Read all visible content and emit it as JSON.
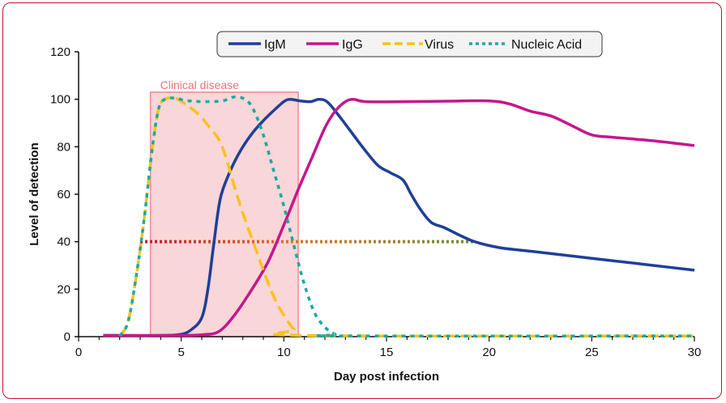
{
  "chart_data": {
    "type": "line",
    "xlabel": "Day post infection",
    "ylabel": "Level of detection",
    "xlim": [
      0,
      30
    ],
    "ylim": [
      0,
      120
    ],
    "xticks": [
      0,
      5,
      10,
      15,
      20,
      25,
      30
    ],
    "yticks": [
      0,
      20,
      40,
      60,
      80,
      100,
      120
    ],
    "grid": false,
    "legend_position": "top-center",
    "annotation": {
      "label": "Clinical disease",
      "x_start": 3.5,
      "x_end": 10.7,
      "y_top": 103,
      "color": "#f0707a"
    },
    "threshold": {
      "y": 40,
      "x_start": 3.0,
      "x_end": 19.3
    },
    "series": [
      {
        "name": "IgM",
        "color": "#1f3f99",
        "dash": "solid",
        "points": [
          [
            1.2,
            0.5
          ],
          [
            4,
            0.5
          ],
          [
            5,
            1
          ],
          [
            5.5,
            3
          ],
          [
            6,
            8
          ],
          [
            6.3,
            20
          ],
          [
            6.6,
            40
          ],
          [
            6.9,
            58
          ],
          [
            7.3,
            68
          ],
          [
            7.8,
            77
          ],
          [
            8.4,
            85
          ],
          [
            9,
            91
          ],
          [
            9.6,
            96
          ],
          [
            10,
            99
          ],
          [
            10.3,
            100
          ],
          [
            10.8,
            99.3
          ],
          [
            11.3,
            99
          ],
          [
            11.7,
            100
          ],
          [
            12.1,
            99
          ],
          [
            12.6,
            94
          ],
          [
            13.3,
            86
          ],
          [
            14,
            78
          ],
          [
            14.6,
            72
          ],
          [
            15.2,
            69
          ],
          [
            15.8,
            66
          ],
          [
            16.2,
            60
          ],
          [
            16.7,
            53
          ],
          [
            17.2,
            48
          ],
          [
            17.8,
            46
          ],
          [
            18.5,
            43
          ],
          [
            19.3,
            40
          ],
          [
            20.5,
            37.5
          ],
          [
            22,
            36
          ],
          [
            24,
            34
          ],
          [
            26,
            32
          ],
          [
            28,
            30
          ],
          [
            30,
            28
          ]
        ]
      },
      {
        "name": "IgG",
        "color": "#c4178d",
        "dash": "solid",
        "points": [
          [
            1.2,
            0.5
          ],
          [
            5,
            0.5
          ],
          [
            6,
            0.8
          ],
          [
            6.8,
            2
          ],
          [
            7.5,
            8
          ],
          [
            8.3,
            18
          ],
          [
            9.2,
            31
          ],
          [
            10,
            47
          ],
          [
            10.7,
            62
          ],
          [
            11.4,
            76
          ],
          [
            12,
            88
          ],
          [
            12.5,
            95
          ],
          [
            13,
            99
          ],
          [
            13.4,
            100
          ],
          [
            14,
            99
          ],
          [
            16,
            99
          ],
          [
            18,
            99.2
          ],
          [
            20,
            99.3
          ],
          [
            21,
            98
          ],
          [
            22,
            95
          ],
          [
            23,
            93
          ],
          [
            24,
            89
          ],
          [
            25,
            85
          ],
          [
            26,
            84
          ],
          [
            28,
            82.5
          ],
          [
            30,
            80.5
          ]
        ]
      },
      {
        "name": "Virus",
        "color": "#f9c21a",
        "dash": "dashed",
        "points": [
          [
            2,
            0.3
          ],
          [
            2.4,
            6
          ],
          [
            2.8,
            25
          ],
          [
            3.2,
            50
          ],
          [
            3.6,
            80
          ],
          [
            3.9,
            96
          ],
          [
            4.2,
            100
          ],
          [
            4.7,
            100.5
          ],
          [
            5.2,
            98
          ],
          [
            5.8,
            94
          ],
          [
            6.4,
            88
          ],
          [
            6.9,
            82
          ],
          [
            7.3,
            72
          ],
          [
            7.6,
            63
          ],
          [
            8,
            52
          ],
          [
            8.5,
            40
          ],
          [
            9,
            28
          ],
          [
            9.5,
            17
          ],
          [
            10,
            9
          ],
          [
            10.5,
            3
          ],
          [
            11,
            0.5
          ],
          [
            30,
            0.3
          ]
        ]
      },
      {
        "name": "Nucleic Acid",
        "color": "#17aaa0",
        "dash": "dotted",
        "points": [
          [
            2,
            0.3
          ],
          [
            2.4,
            6
          ],
          [
            2.8,
            25
          ],
          [
            3.2,
            50
          ],
          [
            3.6,
            80
          ],
          [
            3.9,
            96
          ],
          [
            4.2,
            100
          ],
          [
            4.7,
            100.5
          ],
          [
            5.2,
            99.5
          ],
          [
            6,
            99
          ],
          [
            7,
            99.3
          ],
          [
            7.6,
            101
          ],
          [
            8.1,
            100
          ],
          [
            8.5,
            96
          ],
          [
            9,
            85
          ],
          [
            9.5,
            70
          ],
          [
            10,
            55
          ],
          [
            10.5,
            38
          ],
          [
            11,
            22
          ],
          [
            11.5,
            10
          ],
          [
            12,
            4
          ],
          [
            12.5,
            1
          ],
          [
            13,
            0.3
          ],
          [
            30,
            0.3
          ]
        ]
      }
    ]
  }
}
